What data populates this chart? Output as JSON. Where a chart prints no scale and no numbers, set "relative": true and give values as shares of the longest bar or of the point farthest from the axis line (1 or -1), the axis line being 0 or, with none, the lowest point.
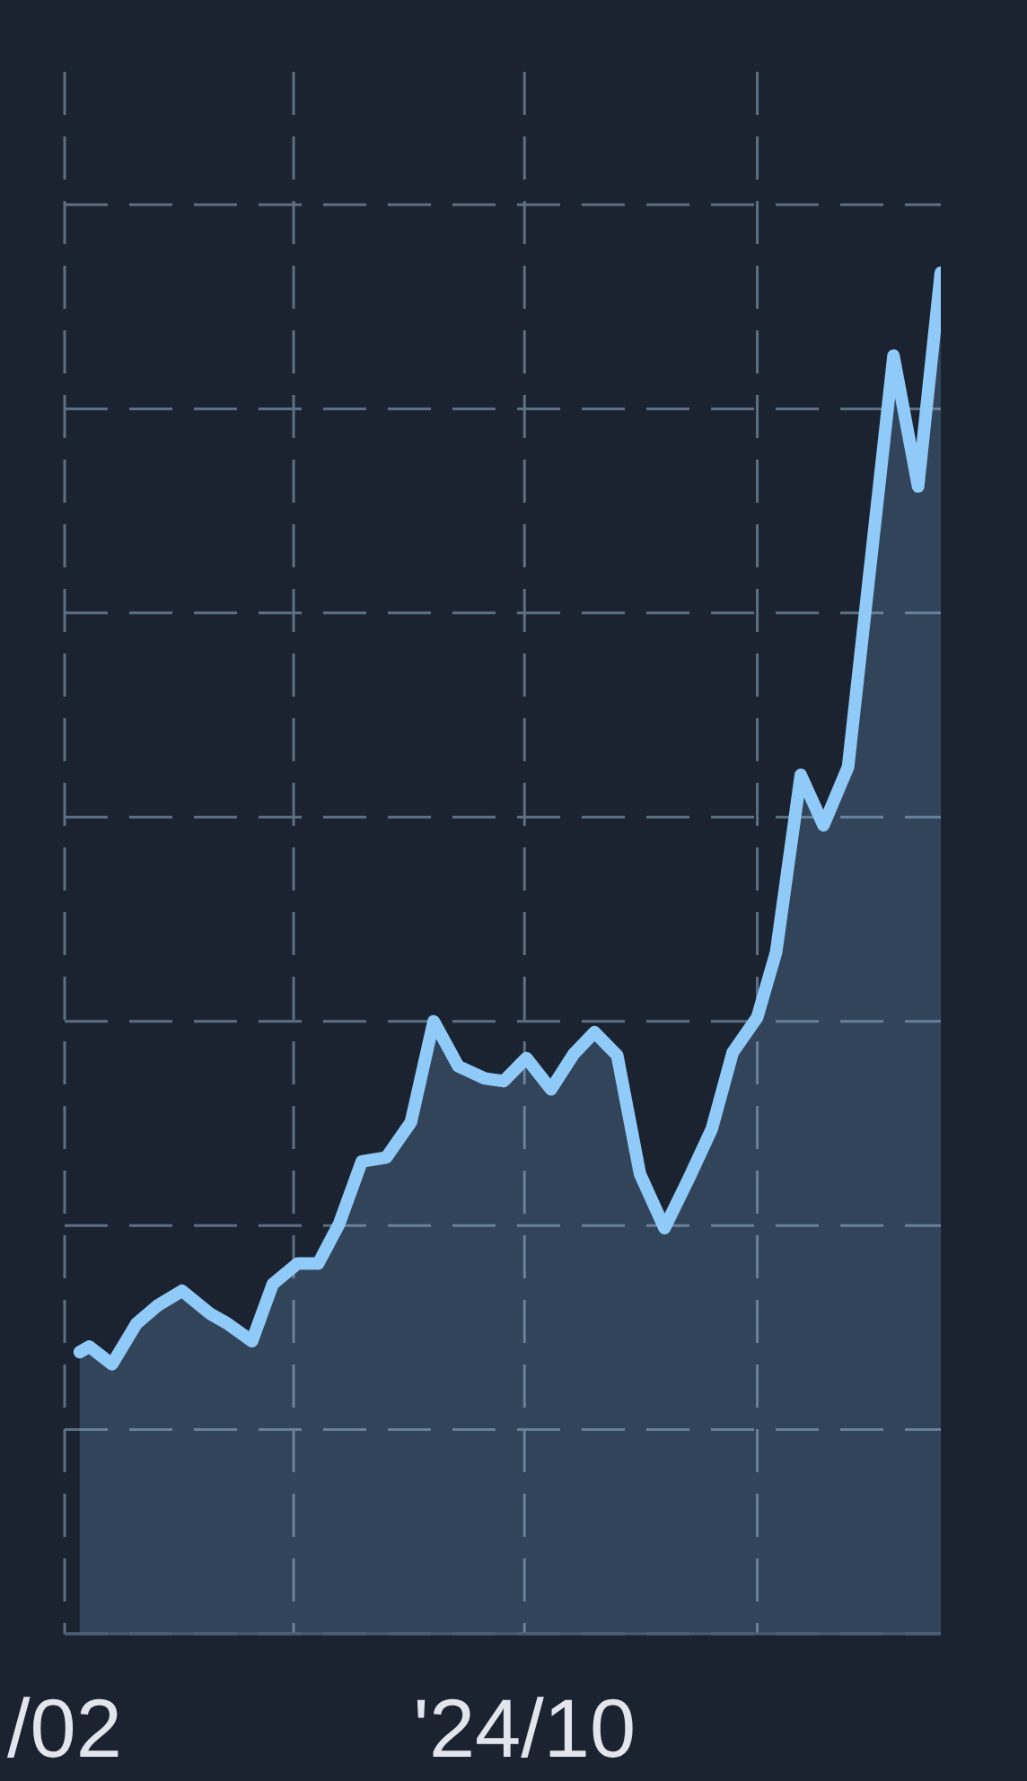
{
  "chart_data": {
    "type": "area",
    "relative": true,
    "x": [
      "2024-02-09",
      "2024-02-14",
      "2024-02-26",
      "2024-03-10",
      "2024-03-21",
      "2024-04-03",
      "2024-04-18",
      "2024-04-27",
      "2024-05-10",
      "2024-05-21",
      "2024-06-03",
      "2024-06-14",
      "2024-06-25",
      "2024-07-07",
      "2024-07-20",
      "2024-08-02",
      "2024-08-14",
      "2024-08-27",
      "2024-09-10",
      "2024-09-20",
      "2024-10-02",
      "2024-10-15",
      "2024-10-27",
      "2024-11-07",
      "2024-11-19",
      "2024-12-01",
      "2024-12-14",
      "2024-12-27",
      "2025-01-08",
      "2025-01-19",
      "2025-02-01",
      "2025-02-11",
      "2025-02-24",
      "2025-03-08",
      "2025-03-21",
      "2025-04-14",
      "2025-04-27",
      "2025-05-09"
    ],
    "values": [
      0.207,
      0.211,
      0.198,
      0.228,
      0.241,
      0.252,
      0.235,
      0.228,
      0.215,
      0.257,
      0.272,
      0.272,
      0.301,
      0.347,
      0.35,
      0.376,
      0.45,
      0.417,
      0.408,
      0.406,
      0.423,
      0.4,
      0.426,
      0.442,
      0.425,
      0.338,
      0.298,
      0.335,
      0.371,
      0.427,
      0.453,
      0.501,
      0.631,
      0.594,
      0.637,
      0.939,
      0.843,
      1
    ],
    "color": "#90caf9",
    "xlim": [
      "2024-02",
      "2025-05-09"
    ],
    "xticks": [
      {
        "value": "2024-02",
        "label": "/02"
      },
      {
        "value": "2024-06",
        "label": null
      },
      {
        "value": "2024-10",
        "label": "'24/10"
      },
      {
        "value": "2025-02",
        "label": null
      }
    ],
    "grid": true
  }
}
